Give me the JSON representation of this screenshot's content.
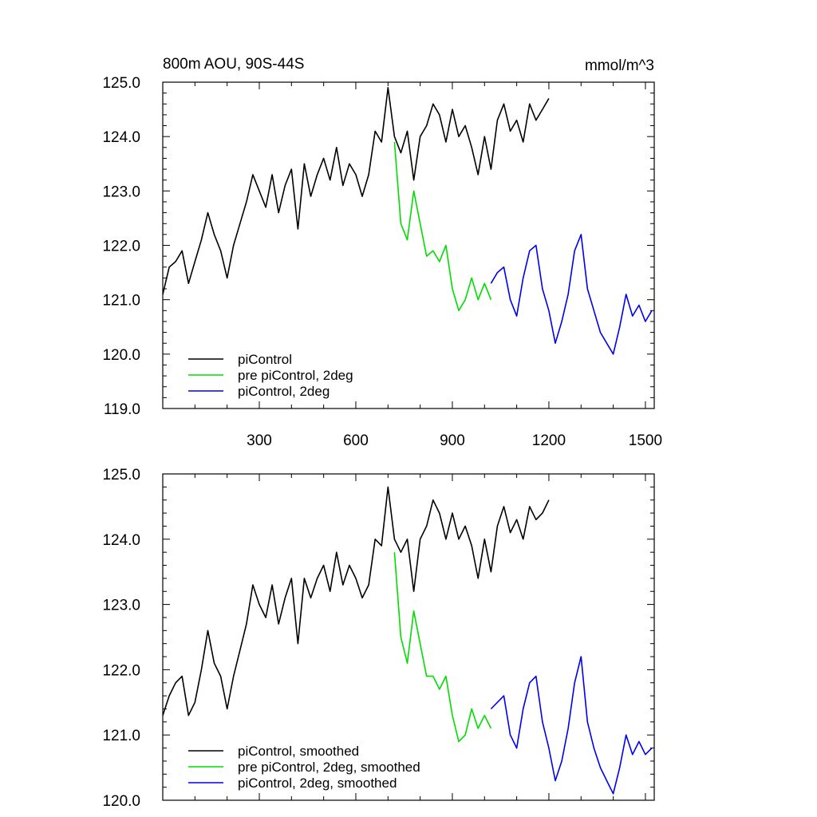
{
  "chart_data": [
    {
      "type": "line",
      "title_left": "800m AOU, 90S-44S",
      "title_right": "mmol/m^3",
      "xlim": [
        0,
        1520
      ],
      "ylim": [
        119,
        125
      ],
      "x_ticks": [
        300,
        600,
        900,
        1200,
        1500
      ],
      "x_tick_labels": [
        "300",
        "600",
        "900",
        "1200",
        "1500"
      ],
      "y_ticks": [
        119,
        120,
        121,
        122,
        123,
        124,
        125
      ],
      "y_tick_labels": [
        "119.0",
        "120.0",
        "121.0",
        "122.0",
        "123.0",
        "124.0",
        "125.0"
      ],
      "legend": [
        "piControl",
        "pre piControl, 2deg",
        "piControl, 2deg"
      ],
      "legend_position": "lower-left",
      "series": [
        {
          "name": "piControl",
          "color": "#000000",
          "x": [
            0,
            20,
            40,
            60,
            80,
            100,
            120,
            140,
            160,
            180,
            200,
            220,
            240,
            260,
            280,
            300,
            320,
            340,
            360,
            380,
            400,
            420,
            440,
            460,
            480,
            500,
            520,
            540,
            560,
            580,
            600,
            620,
            640,
            660,
            680,
            700,
            720,
            740,
            760,
            780,
            800,
            820,
            840,
            860,
            880,
            900,
            920,
            940,
            960,
            980,
            1000,
            1020,
            1040,
            1060,
            1080,
            1100,
            1120,
            1140,
            1160,
            1180,
            1200
          ],
          "y": [
            121.1,
            121.6,
            121.7,
            121.9,
            121.3,
            121.7,
            122.1,
            122.6,
            122.2,
            121.9,
            121.4,
            122.0,
            122.4,
            122.8,
            123.3,
            123.0,
            122.7,
            123.3,
            122.6,
            123.1,
            123.4,
            122.3,
            123.5,
            122.9,
            123.3,
            123.6,
            123.2,
            123.8,
            123.1,
            123.5,
            123.3,
            122.9,
            123.3,
            124.1,
            123.9,
            124.9,
            124.0,
            123.7,
            124.1,
            123.2,
            124.0,
            124.2,
            124.6,
            124.4,
            123.9,
            124.5,
            124.0,
            124.2,
            123.8,
            123.3,
            124.0,
            123.4,
            124.3,
            124.6,
            124.1,
            124.3,
            123.9,
            124.6,
            124.3,
            124.5,
            124.7
          ]
        },
        {
          "name": "pre piControl, 2deg",
          "color": "#00dd00",
          "x": [
            720,
            740,
            760,
            780,
            800,
            820,
            840,
            860,
            880,
            900,
            920,
            940,
            960,
            980,
            1000,
            1020
          ],
          "y": [
            123.9,
            122.4,
            122.1,
            123.0,
            122.4,
            121.8,
            121.9,
            121.7,
            122.0,
            121.2,
            120.8,
            121.0,
            121.4,
            121.0,
            121.3,
            121.0
          ]
        },
        {
          "name": "piControl, 2deg",
          "color": "#0000ee",
          "x": [
            1020,
            1040,
            1060,
            1080,
            1100,
            1120,
            1140,
            1160,
            1180,
            1200,
            1220,
            1240,
            1260,
            1280,
            1300,
            1320,
            1340,
            1360,
            1380,
            1400,
            1420,
            1440,
            1460,
            1480,
            1500,
            1520
          ],
          "y": [
            121.3,
            121.5,
            121.6,
            121.0,
            120.7,
            121.4,
            121.9,
            122.0,
            121.2,
            120.8,
            120.2,
            120.6,
            121.1,
            121.9,
            122.2,
            121.2,
            120.8,
            120.4,
            120.2,
            120.0,
            120.5,
            121.1,
            120.7,
            120.9,
            120.6,
            120.8
          ]
        }
      ]
    },
    {
      "type": "line",
      "xlim": [
        0,
        1520
      ],
      "ylim": [
        120,
        125
      ],
      "y_ticks": [
        120,
        121,
        122,
        123,
        124,
        125
      ],
      "y_tick_labels": [
        "120.0",
        "121.0",
        "122.0",
        "123.0",
        "124.0",
        "125.0"
      ],
      "legend": [
        "piControl, smoothed",
        "pre piControl, 2deg, smoothed",
        "piControl, 2deg, smoothed"
      ],
      "legend_position": "lower-left",
      "series": [
        {
          "name": "piControl, smoothed",
          "color": "#000000",
          "x": [
            0,
            20,
            40,
            60,
            80,
            100,
            120,
            140,
            160,
            180,
            200,
            220,
            240,
            260,
            280,
            300,
            320,
            340,
            360,
            380,
            400,
            420,
            440,
            460,
            480,
            500,
            520,
            540,
            560,
            580,
            600,
            620,
            640,
            660,
            680,
            700,
            720,
            740,
            760,
            780,
            800,
            820,
            840,
            860,
            880,
            900,
            920,
            940,
            960,
            980,
            1000,
            1020,
            1040,
            1060,
            1080,
            1100,
            1120,
            1140,
            1160,
            1180,
            1200
          ],
          "y": [
            121.3,
            121.6,
            121.8,
            121.9,
            121.3,
            121.5,
            122.0,
            122.6,
            122.1,
            121.9,
            121.4,
            121.9,
            122.3,
            122.7,
            123.3,
            123.0,
            122.8,
            123.3,
            122.7,
            123.1,
            123.4,
            122.4,
            123.4,
            123.1,
            123.4,
            123.6,
            123.2,
            123.8,
            123.3,
            123.6,
            123.4,
            123.1,
            123.3,
            124.0,
            123.9,
            124.8,
            124.0,
            123.8,
            124.0,
            123.2,
            124.0,
            124.2,
            124.6,
            124.4,
            124.0,
            124.4,
            124.0,
            124.2,
            123.9,
            123.4,
            124.0,
            123.5,
            124.2,
            124.5,
            124.1,
            124.3,
            124.0,
            124.5,
            124.3,
            124.4,
            124.6
          ]
        },
        {
          "name": "pre piControl, 2deg, smoothed",
          "color": "#00dd00",
          "x": [
            720,
            740,
            760,
            780,
            800,
            820,
            840,
            860,
            880,
            900,
            920,
            940,
            960,
            980,
            1000,
            1020
          ],
          "y": [
            123.8,
            122.5,
            122.1,
            122.9,
            122.4,
            121.9,
            121.9,
            121.7,
            121.9,
            121.3,
            120.9,
            121.0,
            121.4,
            121.1,
            121.3,
            121.1
          ]
        },
        {
          "name": "piControl, 2deg, smoothed",
          "color": "#0000ee",
          "x": [
            1020,
            1040,
            1060,
            1080,
            1100,
            1120,
            1140,
            1160,
            1180,
            1200,
            1220,
            1240,
            1260,
            1280,
            1300,
            1320,
            1340,
            1360,
            1380,
            1400,
            1420,
            1440,
            1460,
            1480,
            1500,
            1520
          ],
          "y": [
            121.4,
            121.5,
            121.6,
            121.0,
            120.8,
            121.4,
            121.8,
            121.9,
            121.2,
            120.8,
            120.3,
            120.6,
            121.1,
            121.8,
            122.2,
            121.2,
            120.8,
            120.5,
            120.3,
            120.1,
            120.5,
            121.0,
            120.7,
            120.9,
            120.7,
            120.8
          ]
        }
      ]
    }
  ]
}
